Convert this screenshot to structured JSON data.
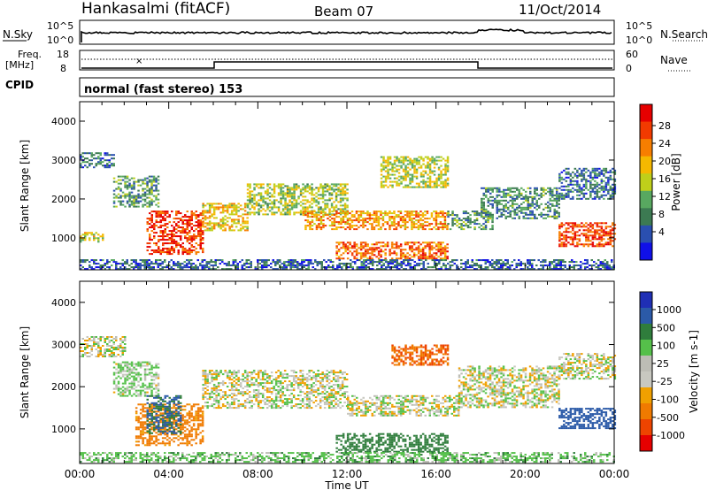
{
  "header": {
    "station": "Hankasalmi (fitACF)",
    "beam": "Beam 07",
    "date": "11/Oct/2014"
  },
  "status": {
    "noise_sky_label": "N.Sky",
    "noise_search_label": "N.Search",
    "noise_left_ticks": [
      "10^5",
      "10^0"
    ],
    "noise_right_ticks": [
      "10^5",
      "10^0"
    ],
    "freq_label_line1": "Freq.",
    "freq_label_line2": "[MHz]",
    "freq_ticks": [
      "18",
      "8"
    ],
    "nave_label": "Nave",
    "nave_ticks": [
      "60",
      "0"
    ],
    "cpid_label": "CPID",
    "cpid_text": "normal (fast stereo) 153"
  },
  "colors": {
    "power": [
      "#1010e8",
      "#2a4fb0",
      "#3c7a52",
      "#58a860",
      "#bfcf1a",
      "#f5b800",
      "#f77e00",
      "#f23a00",
      "#e60000"
    ],
    "velocity": [
      "#1f2fb5",
      "#2b5aa8",
      "#2f7d3c",
      "#55c04a",
      "#bdbdb5",
      "#c8c8c0",
      "#f0a000",
      "#f07a00",
      "#ee4400",
      "#e60000"
    ]
  },
  "chart_data": [
    {
      "type": "heatmap",
      "name": "Power",
      "ylabel": "Slant Range [km]",
      "yticks": [
        "4000",
        "3000",
        "2000",
        "1000"
      ],
      "ylim": [
        180,
        4500
      ],
      "xticks": [
        "00:00",
        "04:00",
        "08:00",
        "12:00",
        "16:00",
        "20:00",
        "00:00"
      ],
      "xlim_hours": [
        0,
        24
      ],
      "colorbar": {
        "label": "Power [dB]",
        "ticks": [
          "28",
          "24",
          "20",
          "16",
          "12",
          "8",
          "4"
        ],
        "range": [
          0,
          30
        ]
      },
      "regions": [
        {
          "t": [
            0.0,
            1.5
          ],
          "r": [
            2800,
            3200
          ],
          "v": 7
        },
        {
          "t": [
            0.0,
            1.0
          ],
          "r": [
            900,
            1150
          ],
          "v": 16
        },
        {
          "t": [
            1.5,
            3.5
          ],
          "r": [
            1800,
            2600
          ],
          "v": 10
        },
        {
          "t": [
            3.0,
            5.5
          ],
          "r": [
            600,
            1700
          ],
          "v": 26
        },
        {
          "t": [
            5.5,
            7.5
          ],
          "r": [
            1200,
            1900
          ],
          "v": 18
        },
        {
          "t": [
            7.5,
            12.0
          ],
          "r": [
            1600,
            2400
          ],
          "v": 14
        },
        {
          "t": [
            10.0,
            16.5
          ],
          "r": [
            1200,
            1700
          ],
          "v": 20
        },
        {
          "t": [
            13.5,
            16.5
          ],
          "r": [
            2300,
            3100
          ],
          "v": 15
        },
        {
          "t": [
            11.5,
            16.5
          ],
          "r": [
            450,
            900
          ],
          "v": 23
        },
        {
          "t": [
            16.5,
            18.5
          ],
          "r": [
            1200,
            1700
          ],
          "v": 10
        },
        {
          "t": [
            18.0,
            21.5
          ],
          "r": [
            1500,
            2300
          ],
          "v": 9
        },
        {
          "t": [
            21.5,
            24.0
          ],
          "r": [
            2000,
            2800
          ],
          "v": 7
        },
        {
          "t": [
            21.5,
            24.0
          ],
          "r": [
            800,
            1400
          ],
          "v": 25
        },
        {
          "t": [
            0.0,
            24.0
          ],
          "r": [
            200,
            450
          ],
          "v": 6
        }
      ]
    },
    {
      "type": "heatmap",
      "name": "Velocity",
      "ylabel": "Slant Range [km]",
      "yticks": [
        "4000",
        "3000",
        "2000",
        "1000"
      ],
      "ylim": [
        180,
        4500
      ],
      "xticks": [
        "00:00",
        "04:00",
        "08:00",
        "12:00",
        "16:00",
        "20:00",
        "00:00"
      ],
      "xlim_hours": [
        0,
        24
      ],
      "xlabel": "Time UT",
      "colorbar": {
        "label": "Velocity [m s-1]",
        "ticks": [
          "1000",
          "500",
          "100",
          "25",
          "-25",
          "-100",
          "-500",
          "-1000"
        ]
      },
      "regions": [
        {
          "t": [
            0.0,
            2.0
          ],
          "r": [
            2700,
            3200
          ],
          "v": 0
        },
        {
          "t": [
            1.5,
            3.5
          ],
          "r": [
            1800,
            2600
          ],
          "v": 30
        },
        {
          "t": [
            2.5,
            5.5
          ],
          "r": [
            600,
            1600
          ],
          "v": -150
        },
        {
          "t": [
            3.0,
            4.5
          ],
          "r": [
            900,
            1800
          ],
          "v": 300
        },
        {
          "t": [
            5.5,
            12.0
          ],
          "r": [
            1500,
            2400
          ],
          "v": 0
        },
        {
          "t": [
            12.0,
            17.0
          ],
          "r": [
            1300,
            1800
          ],
          "v": 0
        },
        {
          "t": [
            14.0,
            16.5
          ],
          "r": [
            2500,
            3000
          ],
          "v": -300
        },
        {
          "t": [
            11.5,
            16.5
          ],
          "r": [
            450,
            900
          ],
          "v": 200
        },
        {
          "t": [
            17.0,
            21.5
          ],
          "r": [
            1500,
            2500
          ],
          "v": 0
        },
        {
          "t": [
            21.5,
            24.0
          ],
          "r": [
            1000,
            1500
          ],
          "v": 400
        },
        {
          "t": [
            21.5,
            24.0
          ],
          "r": [
            2200,
            2800
          ],
          "v": 0
        },
        {
          "t": [
            0.0,
            24.0
          ],
          "r": [
            200,
            450
          ],
          "v": 60
        }
      ]
    }
  ]
}
